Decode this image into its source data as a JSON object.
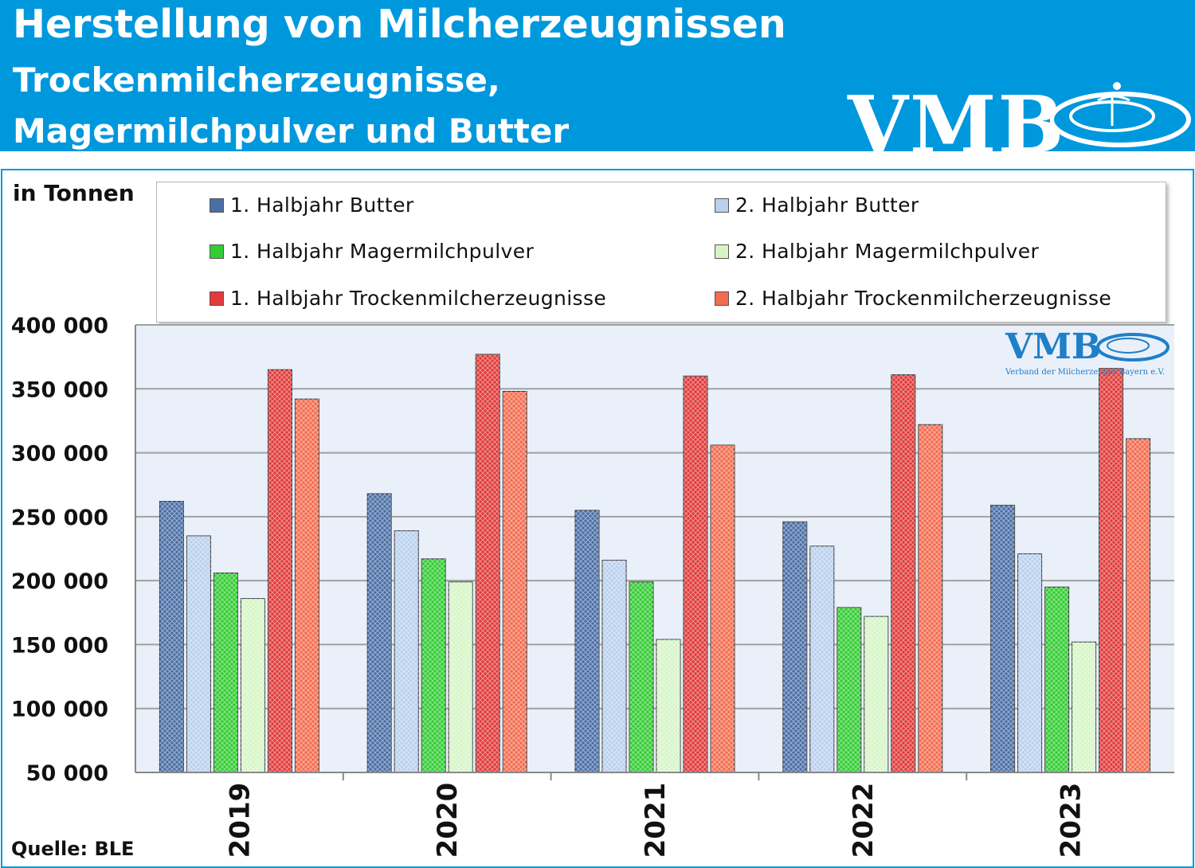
{
  "header": {
    "line1": "Herstellung von Milcherzeugnissen",
    "line2": "Trockenmilcherzeugnisse,",
    "line3": "Magermilchpulver und Butter",
    "logo": "VMB"
  },
  "watermark": {
    "logo": "VMB",
    "subtitle": "Verband der Milcherzeuger Bayern e.V."
  },
  "unit_label": "in Tonnen",
  "source": "Quelle: BLE",
  "colors": {
    "header_bg": "#0098dc",
    "plot_bg": "#eaf0f9",
    "series": [
      "#4a6fa5",
      "#b9d0ee",
      "#33cc33",
      "#d6f5c6",
      "#e03a3a",
      "#f26c4f"
    ]
  },
  "chart_data": {
    "type": "bar",
    "title": "Herstellung von Milcherzeugnissen",
    "ylabel": "in Tonnen",
    "xlabel": "",
    "ylim": [
      50000,
      400000
    ],
    "yticks": [
      50000,
      100000,
      150000,
      200000,
      250000,
      300000,
      350000,
      400000
    ],
    "ytick_labels": [
      "50 000",
      "100 000",
      "150 000",
      "200 000",
      "250 000",
      "300 000",
      "350 000",
      "400 000"
    ],
    "categories": [
      "2019",
      "2020",
      "2021",
      "2022",
      "2023"
    ],
    "grid": true,
    "legend_position": "top",
    "series": [
      {
        "name": "1. Halbjahr Butter",
        "values": [
          262000,
          268000,
          255000,
          246000,
          259000
        ]
      },
      {
        "name": "2. Halbjahr Butter",
        "values": [
          235000,
          239000,
          216000,
          227000,
          221000
        ]
      },
      {
        "name": "1. Halbjahr Magermilchpulver",
        "values": [
          206000,
          217000,
          199000,
          179000,
          195000
        ]
      },
      {
        "name": "2. Halbjahr Magermilchpulver",
        "values": [
          186000,
          199000,
          154000,
          172000,
          152000
        ]
      },
      {
        "name": "1. Halbjahr Trockenmilcherzeugnisse",
        "values": [
          365000,
          377000,
          360000,
          361000,
          366000
        ]
      },
      {
        "name": "2. Halbjahr Trockenmilcherzeugnisse",
        "values": [
          342000,
          348000,
          306000,
          322000,
          311000
        ]
      }
    ]
  }
}
